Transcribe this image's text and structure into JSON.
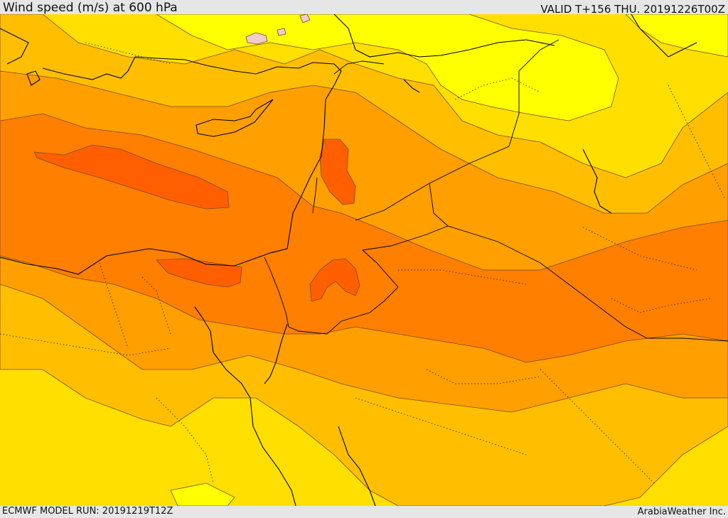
{
  "header": {
    "title": "Wind speed (m/s) at 600 hPa",
    "valid": "VALID T+156 THU. 20191226T00Z"
  },
  "footer": {
    "model_run": "ECMWF MODEL RUN: 20191219T12Z",
    "credit": "ArabiaWeather Inc."
  },
  "colors": {
    "band_pale": "#f2cccc",
    "band_1": "#ffff00",
    "band_2": "#ffdf00",
    "band_3": "#ffbf00",
    "band_4": "#ff9f00",
    "band_5": "#ff7f00",
    "band_6": "#ff5f00",
    "contour": "#7a4a2a",
    "border": "#000000"
  }
}
